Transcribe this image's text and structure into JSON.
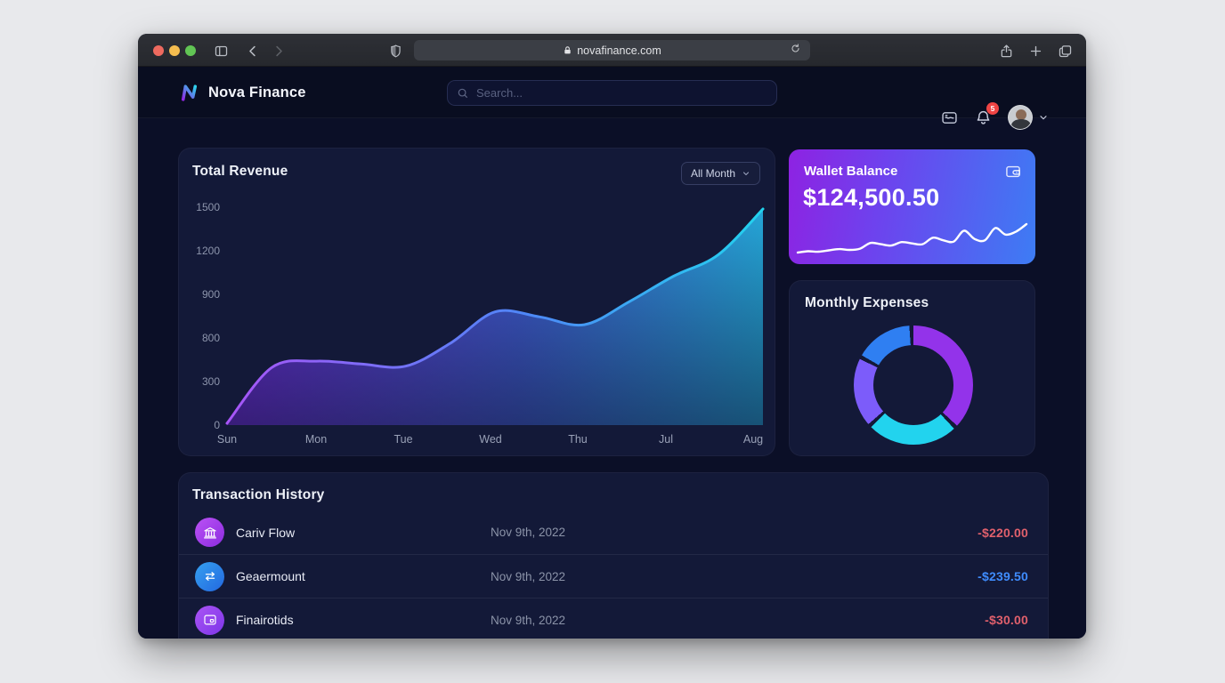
{
  "browser": {
    "url": "novafinance.com"
  },
  "app": {
    "brand": "Nova Finance",
    "search_placeholder": "Search...",
    "notification_badge": "5"
  },
  "revenue": {
    "title": "Total Revenue",
    "filter_label": "All Month"
  },
  "wallet": {
    "title": "Wallet Balance",
    "amount": "$124,500.50"
  },
  "expenses": {
    "title": "Monthly Expenses"
  },
  "transactions": {
    "title": "Transaction History",
    "rows": [
      {
        "icon": "bank-icon",
        "name": "Cariv Flow",
        "date": "Nov 9th, 2022",
        "amount": "-$220.00",
        "tone": "red"
      },
      {
        "icon": "transfer-icon",
        "name": "Geaermount",
        "date": "Nov 9th, 2022",
        "amount": "-$239.50",
        "tone": "blue"
      },
      {
        "icon": "wallet-icon",
        "name": "Finairotids",
        "date": "Nov 9th, 2022",
        "amount": "-$30.00",
        "tone": "red"
      }
    ]
  },
  "icons": {
    "traffic_lights": [
      "close",
      "minimize",
      "zoom"
    ],
    "chrome": [
      "sidebar-toggle-icon",
      "back-icon",
      "forward-icon",
      "shield-icon",
      "lock-icon",
      "reload-icon",
      "share-icon",
      "plus-icon",
      "tabs-icon"
    ],
    "appbar": [
      "nova-logo-icon",
      "search-icon",
      "card-icon",
      "bell-icon",
      "chevron-down-icon"
    ]
  },
  "colors": {
    "app_background": "#0b0f27",
    "card_background": "#131938",
    "accent_purple": "#9333ea",
    "accent_violet": "#7c5cfa",
    "accent_blue": "#2f7ff2",
    "accent_cyan": "#22d3ee",
    "negative_red": "#e0606c",
    "amount_blue": "#3f8cfd",
    "badge_red": "#ef4444",
    "wallet_gradient": [
      "#8e22e2",
      "#3d7cf4"
    ]
  },
  "chart_data": [
    {
      "type": "area",
      "title": "Total Revenue",
      "x_labels": [
        "Sun",
        "Mon",
        "Tue",
        "Wed",
        "Thu",
        "Jul",
        "Aug"
      ],
      "y_ticks": [
        "1500",
        "1200",
        "900",
        "800",
        "300",
        "0"
      ],
      "ylim": [
        0,
        1500
      ],
      "values": [
        0,
        390,
        435,
        415,
        400,
        560,
        780,
        745,
        690,
        850,
        1030,
        1180,
        1500
      ],
      "note": "13 evenly spaced samples Sun to Aug",
      "line_gradient": [
        "#a855f7",
        "#4f86f7",
        "#22d3ee"
      ],
      "grid": false,
      "legend": false
    },
    {
      "type": "pie",
      "title": "Monthly Expenses",
      "donut": true,
      "segments": [
        {
          "label": "segment-1",
          "color": "#9333ea",
          "degrees": 133
        },
        {
          "label": "segment-2",
          "color": "#22d3ee",
          "degrees": 88
        },
        {
          "label": "segment-3",
          "color": "#7c5cfa",
          "degrees": 67
        },
        {
          "label": "segment-4",
          "color": "#2f7ff2",
          "degrees": 56
        }
      ],
      "gap_degrees": 4,
      "track_color": "#131938"
    },
    {
      "type": "line",
      "title": "Wallet balance sparkline",
      "values": [
        2.8,
        3.1,
        3.0,
        3.3,
        3.6,
        3.4,
        3.7,
        5.0,
        4.7,
        4.4,
        5.2,
        4.9,
        4.7,
        6.2,
        5.6,
        5.3,
        7.8,
        5.9,
        5.6,
        8.4,
        6.9,
        7.6,
        9.3
      ]
    }
  ]
}
